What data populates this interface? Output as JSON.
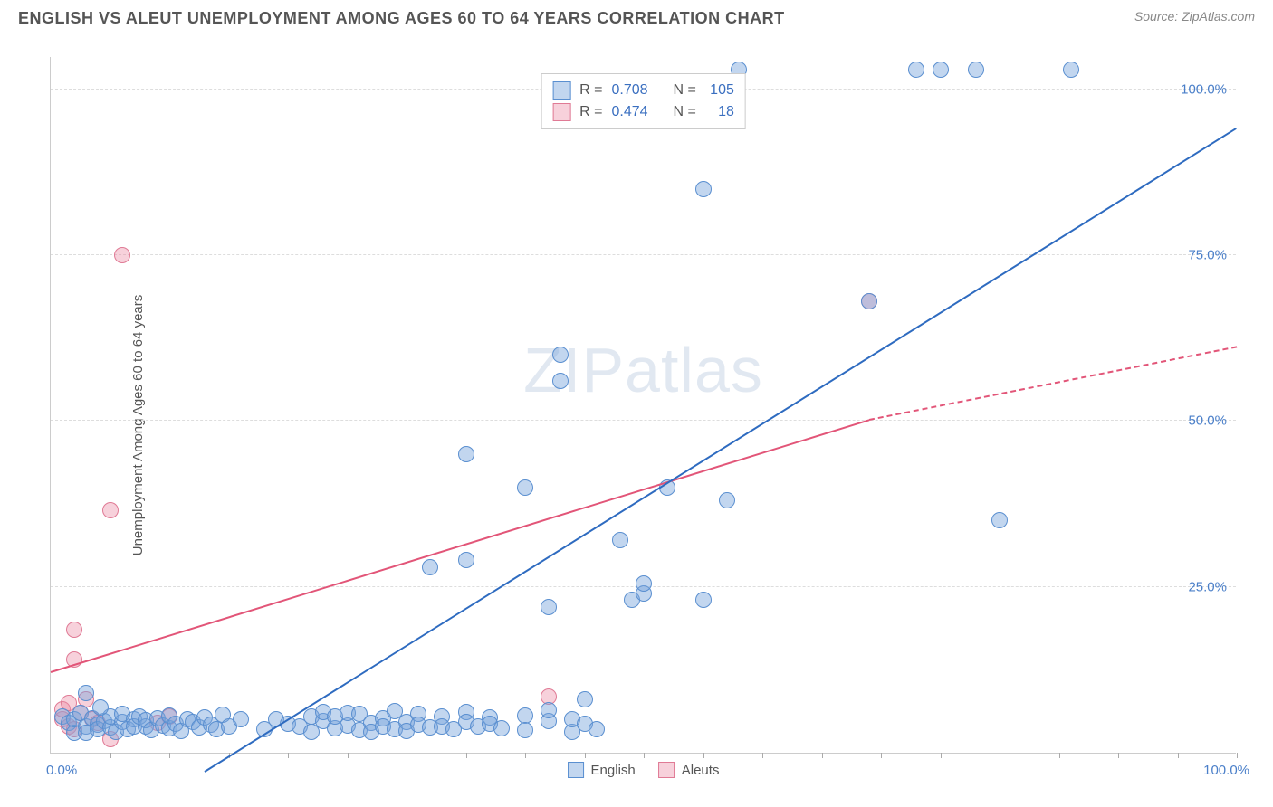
{
  "header": {
    "title": "ENGLISH VS ALEUT UNEMPLOYMENT AMONG AGES 60 TO 64 YEARS CORRELATION CHART",
    "source": "Source: ZipAtlas.com"
  },
  "chart": {
    "type": "scatter",
    "ylabel": "Unemployment Among Ages 60 to 64 years",
    "xlim": [
      0,
      100
    ],
    "ylim": [
      0,
      105
    ],
    "x_min_label": "0.0%",
    "x_max_label": "100.0%",
    "y_ticks": [
      25,
      50,
      75,
      100
    ],
    "y_tick_labels": [
      "25.0%",
      "50.0%",
      "75.0%",
      "100.0%"
    ],
    "x_minor_ticks": [
      5,
      10,
      15,
      20,
      25,
      30,
      35,
      40,
      45,
      50,
      55,
      60,
      65,
      70,
      75,
      80,
      85,
      90,
      95,
      100
    ],
    "background_color": "#ffffff",
    "grid_color": "#dddddd",
    "axis_color": "#cccccc",
    "tick_label_color": "#4a7fc9",
    "label_color": "#555555",
    "watermark": "ZIPatlas",
    "series": {
      "english": {
        "label": "English",
        "fill": "rgba(120,165,220,0.45)",
        "stroke": "#5a8fd0",
        "marker_radius": 9,
        "r_label": "R =",
        "r_value": "0.708",
        "n_label": "N =",
        "n_value": "105",
        "trend": {
          "x1": 13,
          "y1": -3,
          "x2": 100,
          "y2": 94,
          "color": "#2e6bc0",
          "width": 2.5,
          "dash": false,
          "extrapolate": false
        },
        "points": [
          [
            1,
            5.5
          ],
          [
            1.5,
            4.5
          ],
          [
            2,
            3
          ],
          [
            2,
            5
          ],
          [
            2.5,
            6
          ],
          [
            3,
            4
          ],
          [
            3,
            3
          ],
          [
            3.5,
            5.2
          ],
          [
            4,
            4.2
          ],
          [
            4,
            3.5
          ],
          [
            4.5,
            4.8
          ],
          [
            5,
            3.8
          ],
          [
            5,
            5.5
          ],
          [
            5.5,
            3.2
          ],
          [
            6,
            4.6
          ],
          [
            6,
            5.8
          ],
          [
            6.5,
            3.6
          ],
          [
            7,
            5
          ],
          [
            7,
            4
          ],
          [
            7.5,
            5.4
          ],
          [
            8,
            3.9
          ],
          [
            8,
            4.9
          ],
          [
            8.5,
            3.4
          ],
          [
            9,
            5.2
          ],
          [
            9.5,
            4.1
          ],
          [
            10,
            3.7
          ],
          [
            10,
            5.6
          ],
          [
            10.5,
            4.4
          ],
          [
            11,
            3.3
          ],
          [
            11.5,
            5
          ],
          [
            12,
            4.7
          ],
          [
            12.5,
            3.8
          ],
          [
            13,
            5.3
          ],
          [
            13.5,
            4.2
          ],
          [
            14,
            3.5
          ],
          [
            14.5,
            5.7
          ],
          [
            15,
            4
          ],
          [
            18,
            3.6
          ],
          [
            19,
            5.1
          ],
          [
            20,
            4.3
          ],
          [
            21,
            3.9
          ],
          [
            22,
            5.4
          ],
          [
            22,
            3.2
          ],
          [
            23,
            4.8
          ],
          [
            23,
            6.2
          ],
          [
            24,
            3.7
          ],
          [
            24,
            5.5
          ],
          [
            25,
            4.1
          ],
          [
            25,
            6
          ],
          [
            26,
            3.4
          ],
          [
            26,
            5.8
          ],
          [
            27,
            4.5
          ],
          [
            27,
            3.1
          ],
          [
            28,
            5.2
          ],
          [
            28,
            4
          ],
          [
            29,
            3.6
          ],
          [
            29,
            6.3
          ],
          [
            30,
            4.7
          ],
          [
            30,
            3.3
          ],
          [
            31,
            5.9
          ],
          [
            31,
            4.2
          ],
          [
            32,
            3.8
          ],
          [
            33,
            5.4
          ],
          [
            33,
            4
          ],
          [
            34,
            3.5
          ],
          [
            35,
            6.1
          ],
          [
            35,
            4.6
          ],
          [
            36,
            3.9
          ],
          [
            37,
            5.3
          ],
          [
            37,
            4.3
          ],
          [
            38,
            3.7
          ],
          [
            40,
            5.6
          ],
          [
            40,
            3.4
          ],
          [
            42,
            4.8
          ],
          [
            42,
            6.4
          ],
          [
            44,
            3.2
          ],
          [
            44,
            5.1
          ],
          [
            45,
            4.4
          ],
          [
            45,
            8
          ],
          [
            46,
            3.6
          ],
          [
            32,
            28
          ],
          [
            35,
            29
          ],
          [
            35,
            45
          ],
          [
            40,
            40
          ],
          [
            42,
            22
          ],
          [
            43,
            56
          ],
          [
            43,
            60
          ],
          [
            48,
            32
          ],
          [
            49,
            23
          ],
          [
            50,
            24
          ],
          [
            50,
            25.5
          ],
          [
            52,
            40
          ],
          [
            55,
            23
          ],
          [
            55,
            85
          ],
          [
            57,
            38
          ],
          [
            58,
            103
          ],
          [
            69,
            68
          ],
          [
            73,
            103
          ],
          [
            75,
            103
          ],
          [
            78,
            103
          ],
          [
            80,
            35
          ],
          [
            86,
            103
          ],
          [
            3,
            9
          ],
          [
            4.2,
            6.8
          ],
          [
            16,
            5
          ]
        ]
      },
      "aleuts": {
        "label": "Aleuts",
        "fill": "rgba(235,140,165,0.40)",
        "stroke": "#e07a95",
        "marker_radius": 9,
        "r_label": "R =",
        "r_value": "0.474",
        "n_label": "N =",
        "n_value": "18",
        "trend": {
          "x1": 0,
          "y1": 12,
          "x2": 69,
          "y2": 50,
          "color": "#e25578",
          "width": 2.2,
          "dash": false,
          "extrapolate": true,
          "ext_x2": 100,
          "ext_y2": 61
        },
        "points": [
          [
            1,
            5
          ],
          [
            1,
            6.5
          ],
          [
            1.5,
            4
          ],
          [
            1.5,
            7.5
          ],
          [
            2,
            3.5
          ],
          [
            2.5,
            6
          ],
          [
            2,
            18.5
          ],
          [
            2,
            14
          ],
          [
            3,
            8
          ],
          [
            3.5,
            5
          ],
          [
            4,
            4.5
          ],
          [
            5,
            2
          ],
          [
            5,
            36.5
          ],
          [
            6,
            75
          ],
          [
            9,
            4.5
          ],
          [
            10,
            5.5
          ],
          [
            42,
            8.5
          ],
          [
            69,
            68
          ]
        ]
      }
    },
    "legend_bottom": [
      {
        "label": "English",
        "fill": "rgba(120,165,220,0.45)",
        "stroke": "#5a8fd0"
      },
      {
        "label": "Aleuts",
        "fill": "rgba(235,140,165,0.40)",
        "stroke": "#e07a95"
      }
    ]
  }
}
